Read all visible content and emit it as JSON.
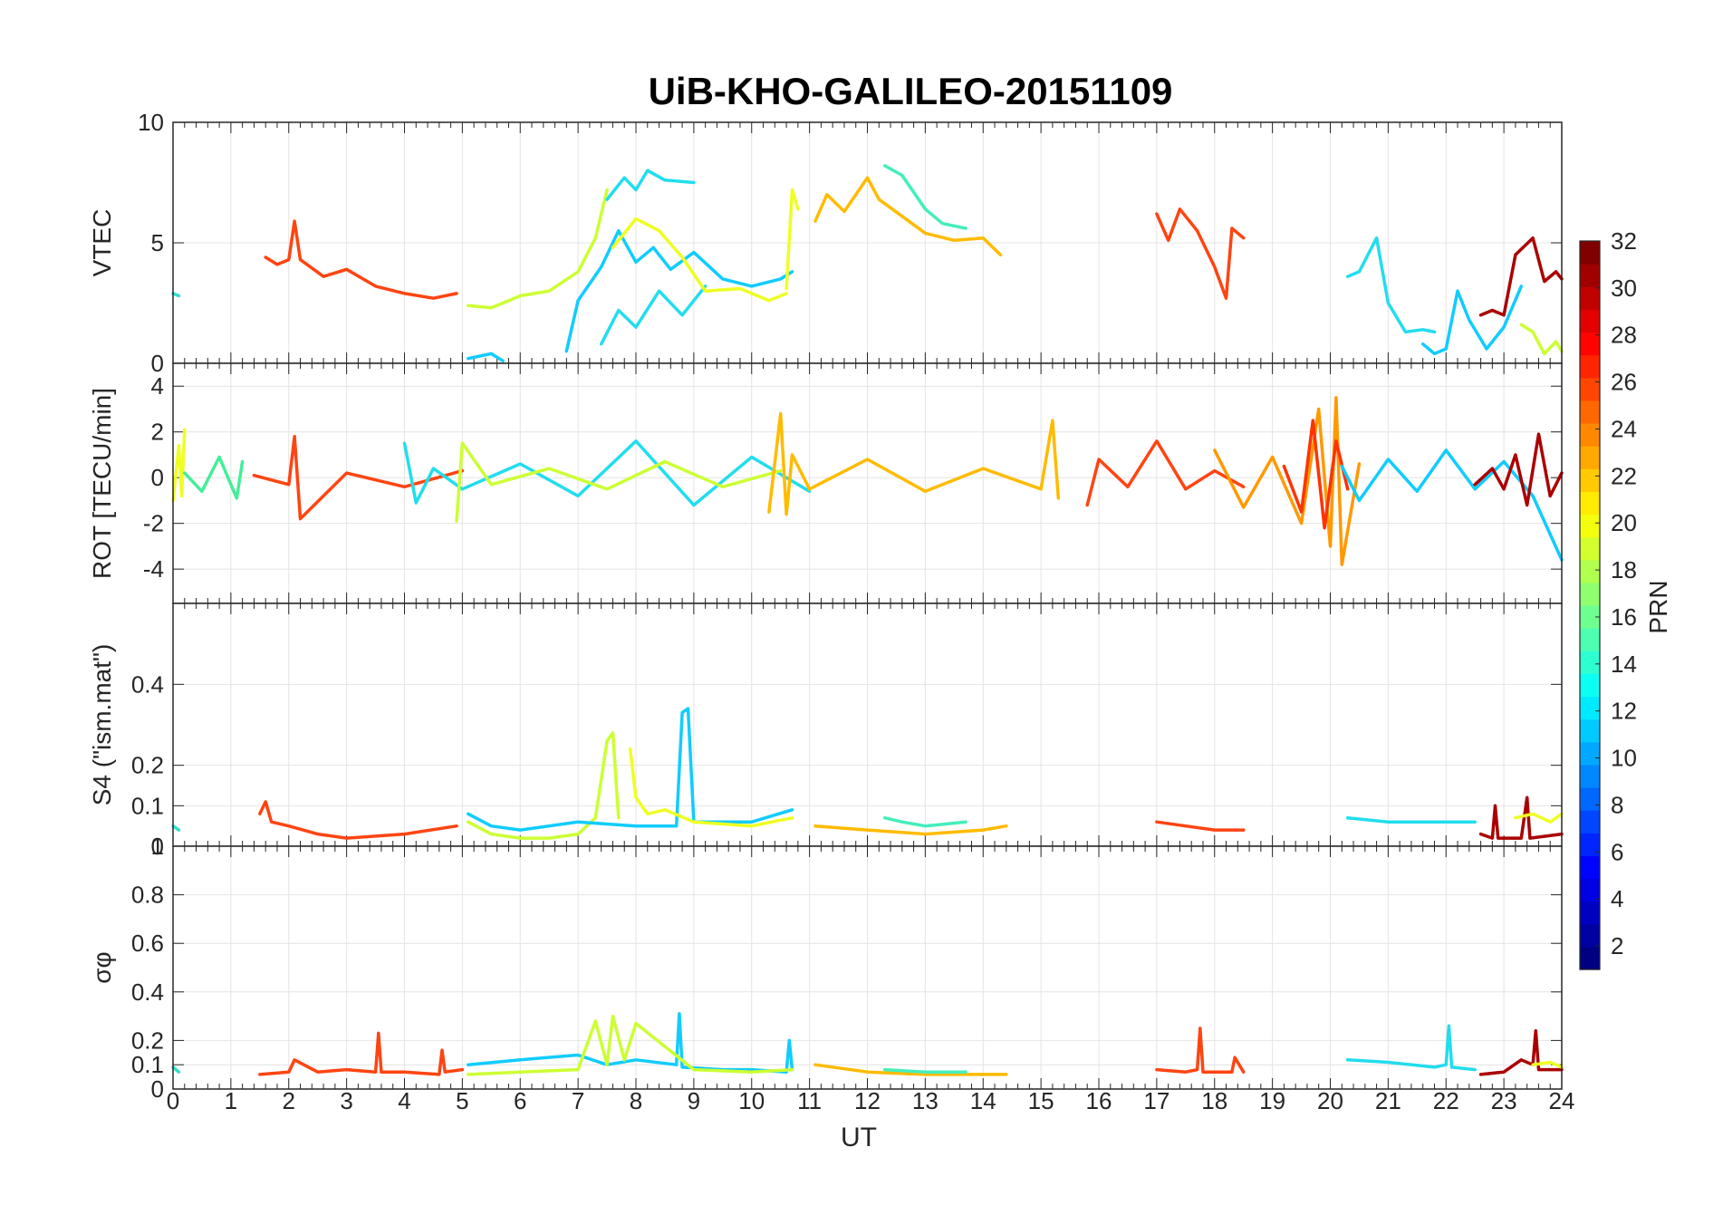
{
  "figure": {
    "title": "UiB-KHO-GALILEO-20151109",
    "xlabel": "UT",
    "x_ticks": [
      "0",
      "1",
      "2",
      "3",
      "4",
      "5",
      "6",
      "7",
      "8",
      "9",
      "10",
      "11",
      "12",
      "13",
      "14",
      "15",
      "16",
      "17",
      "18",
      "19",
      "20",
      "21",
      "22",
      "23",
      "24"
    ]
  },
  "colorbar": {
    "label": "PRN",
    "range": [
      1,
      32
    ],
    "ticks": [
      "2",
      "4",
      "6",
      "8",
      "10",
      "12",
      "14",
      "16",
      "18",
      "20",
      "22",
      "24",
      "26",
      "28",
      "30",
      "32"
    ],
    "colormap": "jet"
  },
  "chart_data": [
    {
      "type": "line",
      "panel": "vtec",
      "ylabel": "VTEC",
      "ylim": [
        0,
        10
      ],
      "xlim": [
        0,
        24
      ],
      "y_ticks": [
        "0",
        "5",
        "10"
      ],
      "grid": true,
      "series": [
        {
          "prn": 13,
          "color": "#33ddcc",
          "x": [
            0.0,
            0.1
          ],
          "y": [
            2.9,
            2.8
          ]
        },
        {
          "prn": 25,
          "color": "#ff4411",
          "x": [
            1.6,
            1.8,
            2.0,
            2.1,
            2.2,
            2.6,
            3.0,
            3.5,
            4.0,
            4.5,
            4.9
          ],
          "y": [
            4.4,
            4.1,
            4.3,
            5.9,
            4.3,
            3.6,
            3.9,
            3.2,
            2.9,
            2.7,
            2.9
          ]
        },
        {
          "prn": 19,
          "color": "#ccff33",
          "x": [
            5.1,
            5.5,
            6.0,
            6.5,
            7.0,
            7.3,
            7.5
          ],
          "y": [
            2.4,
            2.3,
            2.8,
            3.0,
            3.8,
            5.2,
            7.2
          ]
        },
        {
          "prn": 11,
          "color": "#11ccff",
          "x": [
            5.1,
            5.5,
            5.7
          ],
          "y": [
            0.2,
            0.4,
            0.1
          ]
        },
        {
          "prn": 11,
          "color": "#11ccff",
          "x": [
            6.8,
            7.0,
            7.4,
            7.7,
            8.0,
            8.3,
            8.6,
            9.0,
            9.5,
            10.0,
            10.5,
            10.7
          ],
          "y": [
            0.5,
            2.6,
            4.0,
            5.5,
            4.2,
            4.8,
            3.9,
            4.6,
            3.5,
            3.2,
            3.5,
            3.8
          ]
        },
        {
          "prn": 12,
          "color": "#22ddee",
          "x": [
            7.5,
            7.8,
            8.0,
            8.2,
            8.5,
            9.0
          ],
          "y": [
            6.8,
            7.7,
            7.2,
            8.0,
            7.6,
            7.5
          ]
        },
        {
          "prn": 12,
          "color": "#22ddee",
          "x": [
            7.4,
            7.7,
            8.0,
            8.4,
            8.8,
            9.2
          ],
          "y": [
            0.8,
            2.2,
            1.5,
            3.0,
            2.0,
            3.2
          ]
        },
        {
          "prn": 20,
          "color": "#eeff22",
          "x": [
            7.6,
            8.0,
            8.4,
            8.8,
            9.2,
            9.8,
            10.3,
            10.6
          ],
          "y": [
            4.8,
            6.0,
            5.5,
            4.4,
            3.0,
            3.1,
            2.6,
            2.9
          ]
        },
        {
          "prn": 20,
          "color": "#eeff22",
          "x": [
            10.6,
            10.7,
            10.8
          ],
          "y": [
            3.1,
            7.2,
            6.4
          ]
        },
        {
          "prn": 22,
          "color": "#ffbb00",
          "x": [
            11.1,
            11.3,
            11.6,
            12.0,
            12.2,
            12.6,
            13.0,
            13.5,
            14.0,
            14.3
          ],
          "y": [
            5.9,
            7.0,
            6.3,
            7.7,
            6.8,
            6.1,
            5.4,
            5.1,
            5.2,
            4.5
          ]
        },
        {
          "prn": 15,
          "color": "#44eebb",
          "x": [
            12.3,
            12.6,
            13.0,
            13.3,
            13.7
          ],
          "y": [
            8.2,
            7.8,
            6.4,
            5.8,
            5.6
          ]
        },
        {
          "prn": 25,
          "color": "#ff4411",
          "x": [
            17.0,
            17.2,
            17.4,
            17.7,
            18.0,
            18.2,
            18.3,
            18.5
          ],
          "y": [
            6.2,
            5.1,
            6.4,
            5.5,
            4.0,
            2.7,
            5.6,
            5.2
          ]
        },
        {
          "prn": 12,
          "color": "#22ddee",
          "x": [
            20.3,
            20.5,
            20.8,
            21.0,
            21.3,
            21.6,
            21.8
          ],
          "y": [
            3.6,
            3.8,
            5.2,
            2.5,
            1.3,
            1.4,
            1.3
          ]
        },
        {
          "prn": 11,
          "color": "#11ccff",
          "x": [
            21.6,
            21.8,
            22.0,
            22.2,
            22.4,
            22.7,
            23.0,
            23.3
          ],
          "y": [
            0.8,
            0.4,
            0.6,
            3.0,
            1.8,
            0.6,
            1.5,
            3.2
          ]
        },
        {
          "prn": 32,
          "color": "#aa0000",
          "x": [
            22.6,
            22.8,
            23.0,
            23.2,
            23.5,
            23.7,
            23.9,
            24.0
          ],
          "y": [
            2.0,
            2.2,
            2.0,
            4.5,
            5.2,
            3.4,
            3.8,
            3.5
          ]
        },
        {
          "prn": 19,
          "color": "#ccff33",
          "x": [
            23.3,
            23.5,
            23.7,
            23.9,
            24.0
          ],
          "y": [
            1.6,
            1.3,
            0.4,
            0.9,
            0.5
          ]
        }
      ]
    },
    {
      "type": "line",
      "panel": "rot",
      "ylabel": "ROT [TECU/min]",
      "ylim": [
        -5.5,
        5
      ],
      "xlim": [
        0,
        24
      ],
      "y_ticks": [
        "-4",
        "-2",
        "0",
        "2",
        "4"
      ],
      "grid": true,
      "series": [
        {
          "prn": 20,
          "color": "#eeff22",
          "x": [
            0.0,
            0.1,
            0.15,
            0.2
          ],
          "y": [
            -1.0,
            1.4,
            -0.8,
            2.1
          ]
        },
        {
          "prn": 14,
          "color": "#44ee99",
          "x": [
            0.2,
            0.5,
            0.8,
            1.1,
            1.2
          ],
          "y": [
            0.2,
            -0.6,
            0.9,
            -0.9,
            0.7
          ]
        },
        {
          "prn": 25,
          "color": "#ff4411",
          "x": [
            1.4,
            2.0,
            2.1,
            2.2,
            3.0,
            4.0,
            5.0
          ],
          "y": [
            0.1,
            -0.3,
            1.8,
            -1.8,
            0.2,
            -0.4,
            0.3
          ]
        },
        {
          "prn": 12,
          "color": "#22ddee",
          "x": [
            4.0,
            4.2,
            4.5,
            5.0,
            6.0,
            7.0,
            8.0,
            9.0,
            10.0,
            11.0
          ],
          "y": [
            1.5,
            -1.1,
            0.4,
            -0.5,
            0.6,
            -0.8,
            1.6,
            -1.2,
            0.9,
            -0.6
          ]
        },
        {
          "prn": 19,
          "color": "#ccff33",
          "x": [
            4.9,
            5.0,
            5.5,
            6.5,
            7.5,
            8.5,
            9.5,
            10.5
          ],
          "y": [
            -1.9,
            1.5,
            -0.3,
            0.4,
            -0.5,
            0.7,
            -0.4,
            0.3
          ]
        },
        {
          "prn": 22,
          "color": "#ffbb00",
          "x": [
            10.3,
            10.5,
            10.6,
            10.7,
            11.0,
            12.0,
            13.0,
            14.0,
            15.0,
            15.2,
            15.3
          ],
          "y": [
            -1.5,
            2.8,
            -1.6,
            1.0,
            -0.5,
            0.8,
            -0.6,
            0.4,
            -0.5,
            2.5,
            -0.9
          ]
        },
        {
          "prn": 25,
          "color": "#ff4411",
          "x": [
            15.8,
            16.0,
            16.5,
            17.0,
            17.5,
            18.0,
            18.5
          ],
          "y": [
            -1.2,
            0.8,
            -0.4,
            1.6,
            -0.5,
            0.3,
            -0.4
          ]
        },
        {
          "prn": 23,
          "color": "#ff9900",
          "x": [
            18.0,
            18.5,
            19.0,
            19.5,
            19.8,
            20.0,
            20.1,
            20.2,
            20.5
          ],
          "y": [
            1.2,
            -1.3,
            0.9,
            -2.0,
            3.0,
            -3.0,
            3.5,
            -3.8,
            0.6
          ]
        },
        {
          "prn": 26,
          "color": "#ff3300",
          "x": [
            19.2,
            19.5,
            19.7,
            19.9,
            20.1,
            20.3
          ],
          "y": [
            0.5,
            -1.5,
            2.5,
            -2.2,
            1.6,
            -0.5
          ]
        },
        {
          "prn": 11,
          "color": "#11ccff",
          "x": [
            20.2,
            20.5,
            21.0,
            21.5,
            22.0,
            22.5,
            23.0,
            23.5,
            24.0
          ],
          "y": [
            0.5,
            -1.0,
            0.8,
            -0.6,
            1.2,
            -0.5,
            0.7,
            -0.8,
            -3.6
          ]
        },
        {
          "prn": 32,
          "color": "#aa0000",
          "x": [
            22.5,
            22.8,
            23.0,
            23.2,
            23.4,
            23.6,
            23.8,
            24.0
          ],
          "y": [
            -0.3,
            0.4,
            -0.5,
            1.0,
            -1.2,
            1.9,
            -0.8,
            0.2
          ]
        }
      ]
    },
    {
      "type": "line",
      "panel": "s4",
      "ylabel": "S4 (\"ism.mat\")",
      "ylim": [
        0,
        0.6
      ],
      "xlim": [
        0,
        24
      ],
      "y_ticks": [
        "0",
        "0.1",
        "0.2",
        "0.4"
      ],
      "grid": true,
      "series": [
        {
          "prn": 13,
          "color": "#33ddcc",
          "x": [
            0.0,
            0.1
          ],
          "y": [
            0.05,
            0.04
          ]
        },
        {
          "prn": 25,
          "color": "#ff4411",
          "x": [
            1.5,
            1.6,
            1.7,
            2.0,
            2.5,
            3.0,
            4.0,
            4.9
          ],
          "y": [
            0.08,
            0.11,
            0.06,
            0.05,
            0.03,
            0.02,
            0.03,
            0.05
          ]
        },
        {
          "prn": 19,
          "color": "#ccff33",
          "x": [
            5.1,
            5.5,
            6.0,
            6.5,
            7.0,
            7.3,
            7.5,
            7.6,
            7.7
          ],
          "y": [
            0.06,
            0.03,
            0.02,
            0.02,
            0.03,
            0.07,
            0.26,
            0.28,
            0.07
          ]
        },
        {
          "prn": 11,
          "color": "#11ccff",
          "x": [
            5.1,
            5.5,
            6.0,
            7.0,
            8.0,
            8.7,
            8.8,
            8.9,
            9.0,
            10.0,
            10.7
          ],
          "y": [
            0.08,
            0.05,
            0.04,
            0.06,
            0.05,
            0.05,
            0.33,
            0.34,
            0.06,
            0.06,
            0.09
          ]
        },
        {
          "prn": 20,
          "color": "#eeff22",
          "x": [
            7.9,
            8.0,
            8.2,
            8.5,
            9.0,
            10.0,
            10.7
          ],
          "y": [
            0.24,
            0.12,
            0.08,
            0.09,
            0.06,
            0.05,
            0.07
          ]
        },
        {
          "prn": 22,
          "color": "#ffbb00",
          "x": [
            11.1,
            12.0,
            13.0,
            14.0,
            14.4
          ],
          "y": [
            0.05,
            0.04,
            0.03,
            0.04,
            0.05
          ]
        },
        {
          "prn": 15,
          "color": "#44eebb",
          "x": [
            12.3,
            12.6,
            13.0,
            13.7
          ],
          "y": [
            0.07,
            0.06,
            0.05,
            0.06
          ]
        },
        {
          "prn": 25,
          "color": "#ff4411",
          "x": [
            17.0,
            17.5,
            18.0,
            18.5
          ],
          "y": [
            0.06,
            0.05,
            0.04,
            0.04
          ]
        },
        {
          "prn": 12,
          "color": "#22ddee",
          "x": [
            20.3,
            21.0,
            22.0,
            22.5
          ],
          "y": [
            0.07,
            0.06,
            0.06,
            0.06
          ]
        },
        {
          "prn": 32,
          "color": "#aa0000",
          "x": [
            22.6,
            22.8,
            22.85,
            22.9,
            23.3,
            23.4,
            23.45,
            24.0
          ],
          "y": [
            0.03,
            0.02,
            0.1,
            0.02,
            0.02,
            0.12,
            0.02,
            0.03
          ]
        },
        {
          "prn": 20,
          "color": "#eeff22",
          "x": [
            23.2,
            23.5,
            23.8,
            24.0
          ],
          "y": [
            0.07,
            0.08,
            0.06,
            0.08
          ]
        }
      ]
    },
    {
      "type": "line",
      "panel": "sigma_phi",
      "ylabel": "σφ",
      "ylim": [
        0,
        1
      ],
      "xlim": [
        0,
        24
      ],
      "y_ticks": [
        "0",
        "0.1",
        "0.2",
        "0.4",
        "0.6",
        "0.8",
        "1"
      ],
      "grid": true,
      "series": [
        {
          "prn": 13,
          "color": "#33ddcc",
          "x": [
            0.0,
            0.1
          ],
          "y": [
            0.09,
            0.07
          ]
        },
        {
          "prn": 25,
          "color": "#ff4411",
          "x": [
            1.5,
            2.0,
            2.1,
            2.5,
            3.0,
            3.5,
            3.55,
            3.6,
            4.0,
            4.6,
            4.65,
            4.7,
            5.0
          ],
          "y": [
            0.06,
            0.07,
            0.12,
            0.07,
            0.08,
            0.07,
            0.23,
            0.07,
            0.07,
            0.06,
            0.16,
            0.07,
            0.08
          ]
        },
        {
          "prn": 11,
          "color": "#11ccff",
          "x": [
            5.1,
            6.0,
            7.0,
            7.5,
            8.0,
            8.7,
            8.75,
            8.8,
            9.5,
            10.0,
            10.6,
            10.65,
            10.7
          ],
          "y": [
            0.1,
            0.12,
            0.14,
            0.1,
            0.12,
            0.1,
            0.31,
            0.09,
            0.08,
            0.08,
            0.07,
            0.2,
            0.08
          ]
        },
        {
          "prn": 19,
          "color": "#ccff33",
          "x": [
            5.1,
            6.0,
            7.0,
            7.3,
            7.5,
            7.6,
            7.8,
            8.0,
            9.0,
            10.0,
            10.7
          ],
          "y": [
            0.06,
            0.07,
            0.08,
            0.28,
            0.1,
            0.3,
            0.12,
            0.27,
            0.08,
            0.07,
            0.08
          ]
        },
        {
          "prn": 22,
          "color": "#ffbb00",
          "x": [
            11.1,
            12.0,
            13.0,
            14.0,
            14.4
          ],
          "y": [
            0.1,
            0.07,
            0.06,
            0.06,
            0.06
          ]
        },
        {
          "prn": 15,
          "color": "#44eebb",
          "x": [
            12.3,
            13.0,
            13.7
          ],
          "y": [
            0.08,
            0.07,
            0.07
          ]
        },
        {
          "prn": 25,
          "color": "#ff4411",
          "x": [
            17.0,
            17.5,
            17.7,
            17.75,
            17.8,
            18.0,
            18.3,
            18.35,
            18.5
          ],
          "y": [
            0.08,
            0.07,
            0.08,
            0.25,
            0.07,
            0.07,
            0.07,
            0.13,
            0.07
          ]
        },
        {
          "prn": 12,
          "color": "#22ddee",
          "x": [
            20.3,
            21.0,
            21.8,
            22.0,
            22.05,
            22.1,
            22.5
          ],
          "y": [
            0.12,
            0.11,
            0.09,
            0.1,
            0.26,
            0.09,
            0.08
          ]
        },
        {
          "prn": 32,
          "color": "#aa0000",
          "x": [
            22.6,
            23.0,
            23.3,
            23.5,
            23.55,
            23.6,
            24.0
          ],
          "y": [
            0.06,
            0.07,
            0.12,
            0.1,
            0.24,
            0.08,
            0.08
          ]
        },
        {
          "prn": 20,
          "color": "#eeff22",
          "x": [
            23.5,
            23.8,
            24.0
          ],
          "y": [
            0.1,
            0.11,
            0.09
          ]
        }
      ]
    }
  ]
}
